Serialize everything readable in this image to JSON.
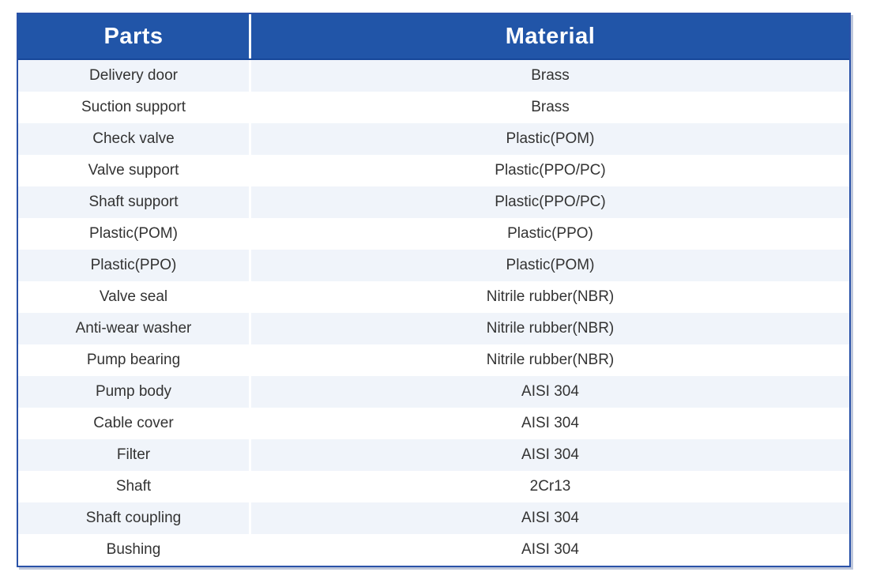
{
  "colors": {
    "header_bg": "#2155a8",
    "header_text": "#ffffff",
    "header_bottom_line": "#17479a",
    "border": "#2a52a8",
    "divider": "#ffffff",
    "row_alt": "#f0f4fa",
    "text": "#333333"
  },
  "chart_data": {
    "type": "table",
    "title": "",
    "columns": [
      "Parts",
      "Material"
    ],
    "rows": [
      [
        "Delivery door",
        "Brass"
      ],
      [
        "Suction support",
        "Brass"
      ],
      [
        "Check valve",
        "Plastic(POM)"
      ],
      [
        "Valve support",
        "Plastic(PPO/PC)"
      ],
      [
        "Shaft support",
        "Plastic(PPO/PC)"
      ],
      [
        "Plastic(POM)",
        "Plastic(PPO)"
      ],
      [
        "Plastic(PPO)",
        "Plastic(POM)"
      ],
      [
        "Valve seal",
        "Nitrile rubber(NBR)"
      ],
      [
        "Anti-wear washer",
        "Nitrile rubber(NBR)"
      ],
      [
        "Pump bearing",
        "Nitrile rubber(NBR)"
      ],
      [
        "Pump body",
        "AISI 304"
      ],
      [
        "Cable cover",
        "AISI 304"
      ],
      [
        "Filter",
        "AISI 304"
      ],
      [
        "Shaft",
        "2Cr13"
      ],
      [
        "Shaft coupling",
        "AISI 304"
      ],
      [
        "Bushing",
        "AISI 304"
      ]
    ],
    "layout": {
      "first_row_shade": "alt",
      "stripe_pattern": "alternating",
      "header_style": "solid-blue",
      "cell_alignment": "center"
    }
  }
}
